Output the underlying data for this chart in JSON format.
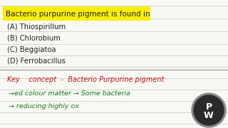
{
  "title": "Bacterio purpurine pigment is found in",
  "options": [
    "(A) Thiospirillum",
    "(B) Chlorobium",
    "(C) Beggiatoa",
    "(D) Ferrobacillus"
  ],
  "key_concept_line": "Key    concept  -  Bacterio Purpurine pigment",
  "detail_line1": "→ed colour matter → Some bacteria",
  "detail_line2": "→ reducing highly ox",
  "bg_color": "#f8f8f5",
  "highlight_color": "#faee00",
  "title_text_color": "#222222",
  "option_text_color": "#222222",
  "key_concept_color": "#cc1111",
  "detail_color": "#1a7a1a",
  "line_color": "#c8c8c8",
  "logo_bg": "#2a2a2a",
  "logo_ring": "#888888"
}
